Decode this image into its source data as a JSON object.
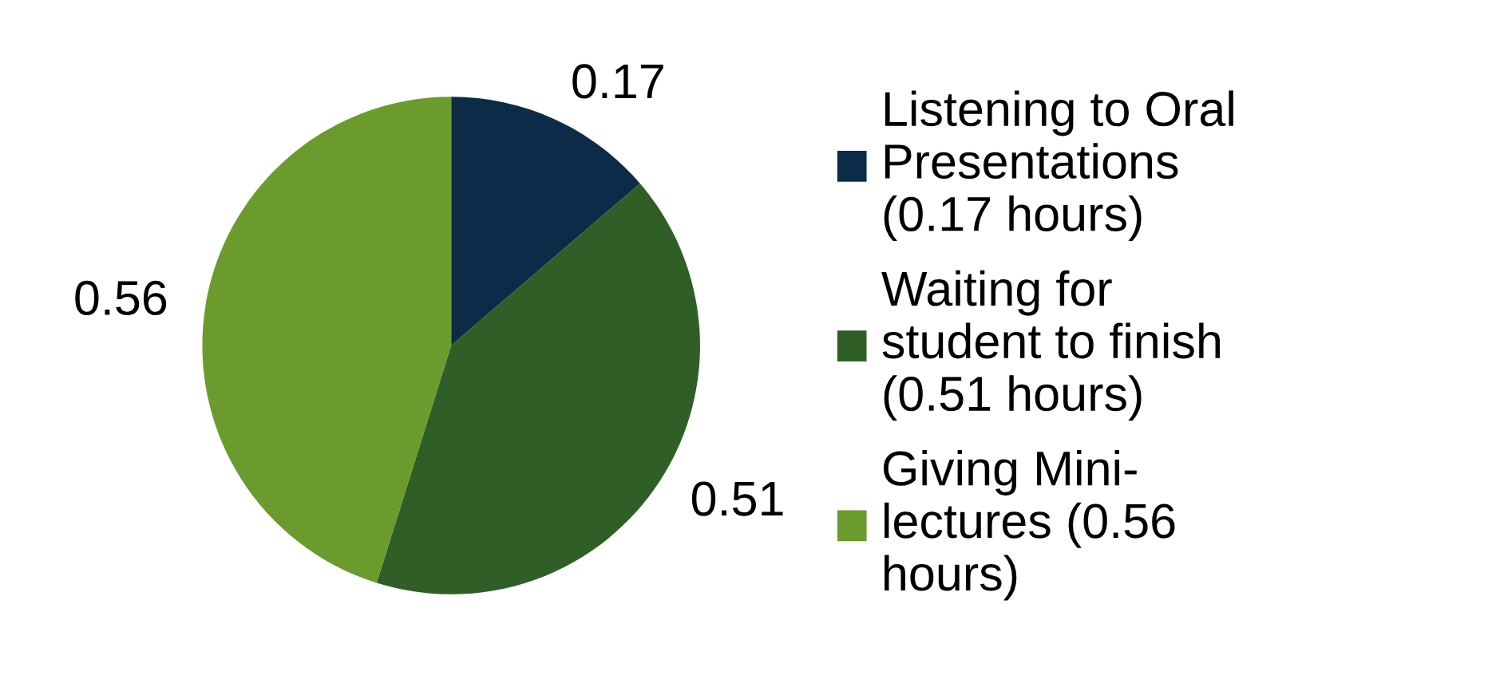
{
  "chart_data": {
    "type": "pie",
    "categories": [
      "Listening to Oral\nPresentations\n(0.17 hours)",
      "Waiting for\nstudent to finish\n(0.51 hours)",
      "Giving Mini-\nlectures (0.56\nhours)"
    ],
    "values": [
      0.17,
      0.51,
      0.56
    ],
    "colors": [
      "#0c2b48",
      "#2f5f26",
      "#6b9b2c"
    ],
    "data_labels": true,
    "legend": "right"
  }
}
